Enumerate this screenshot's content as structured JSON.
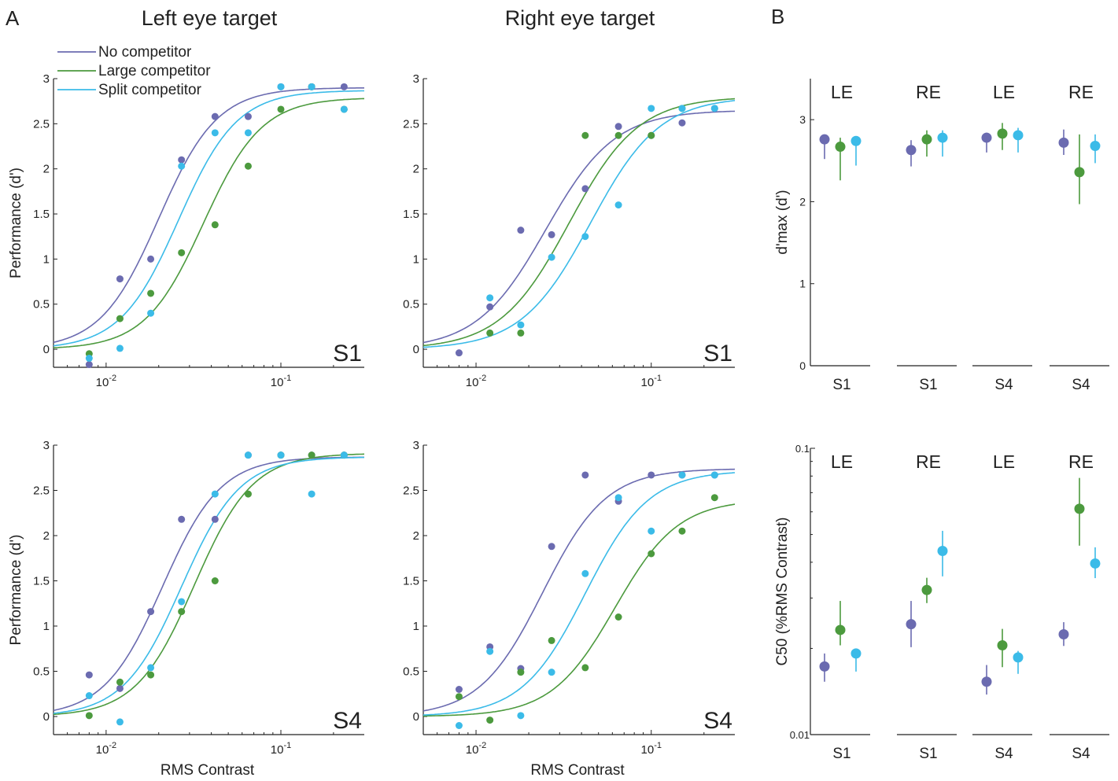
{
  "colors": {
    "no": "#6b6bb0",
    "large": "#4c9a3e",
    "split": "#3bbbe8"
  },
  "panel_labels": {
    "a": "A",
    "b": "B"
  },
  "column_titles": {
    "left": "Left eye target",
    "right": "Right eye target"
  },
  "legend": [
    "No competitor",
    "Large competitor",
    "Split competitor"
  ],
  "chart_data": [
    {
      "type": "line",
      "panel": "A",
      "subject": "S1",
      "title": "Left eye target",
      "xlabel": "",
      "ylabel": "Performance (d')",
      "xscale": "log",
      "xlim": [
        0.005,
        0.3
      ],
      "ylim": [
        -0.2,
        3
      ],
      "yticks": [
        "0",
        "0.5",
        "1",
        "1.5",
        "2",
        "2.5",
        "3"
      ],
      "xticks": [
        "10^-2",
        "10^-1"
      ],
      "x": [
        0.008,
        0.012,
        0.018,
        0.027,
        0.042,
        0.065,
        0.1,
        0.15,
        0.23
      ],
      "series": [
        {
          "name": "No competitor",
          "color": "#6b6bb0",
          "values": [
            -0.17,
            0.78,
            1.0,
            2.1,
            2.58,
            2.58,
            2.91,
            2.91,
            2.91
          ],
          "fit": {
            "max": 2.9,
            "c50": 0.02,
            "slope": 2.6
          }
        },
        {
          "name": "Large competitor",
          "color": "#4c9a3e",
          "values": [
            -0.05,
            0.34,
            0.62,
            1.07,
            1.38,
            2.03,
            2.66,
            2.91,
            2.66
          ],
          "fit": {
            "max": 2.79,
            "c50": 0.036,
            "slope": 2.6
          }
        },
        {
          "name": "Split competitor",
          "color": "#3bbbe8",
          "values": [
            -0.1,
            0.01,
            0.4,
            2.03,
            2.4,
            2.4,
            2.91,
            2.91,
            2.66
          ],
          "fit": {
            "max": 2.87,
            "c50": 0.026,
            "slope": 2.6
          }
        }
      ]
    },
    {
      "type": "line",
      "panel": "A",
      "subject": "S1",
      "title": "Right eye target",
      "xlabel": "",
      "ylabel": "",
      "xscale": "log",
      "xlim": [
        0.005,
        0.3
      ],
      "ylim": [
        -0.2,
        3
      ],
      "yticks": [
        "0",
        "0.5",
        "1",
        "1.5",
        "2",
        "2.5",
        "3"
      ],
      "xticks": [
        "10^-2",
        "10^-1"
      ],
      "x": [
        0.008,
        0.012,
        0.018,
        0.027,
        0.042,
        0.065,
        0.1,
        0.15,
        0.23
      ],
      "series": [
        {
          "name": "No competitor",
          "color": "#6b6bb0",
          "values": [
            -0.04,
            0.47,
            1.32,
            1.27,
            1.78,
            2.47,
            2.37,
            2.51,
            2.67
          ],
          "fit": {
            "max": 2.65,
            "c50": 0.025,
            "slope": 2.2
          }
        },
        {
          "name": "Large competitor",
          "color": "#4c9a3e",
          "values": [
            null,
            0.18,
            0.18,
            null,
            2.37,
            2.37,
            2.37,
            2.67,
            null
          ],
          "fit": {
            "max": 2.8,
            "c50": 0.034,
            "slope": 2.2
          }
        },
        {
          "name": "Split competitor",
          "color": "#3bbbe8",
          "values": [
            null,
            0.57,
            0.27,
            1.02,
            1.25,
            1.6,
            2.67,
            2.67,
            2.67
          ],
          "fit": {
            "max": 2.8,
            "c50": 0.045,
            "slope": 2.2
          }
        }
      ]
    },
    {
      "type": "line",
      "panel": "A",
      "subject": "S4",
      "title": "",
      "xlabel": "RMS Contrast",
      "ylabel": "Performance (d')",
      "xscale": "log",
      "xlim": [
        0.005,
        0.3
      ],
      "ylim": [
        -0.2,
        3
      ],
      "yticks": [
        "0",
        "0.5",
        "1",
        "1.5",
        "2",
        "2.5",
        "3"
      ],
      "xticks": [
        "10^-2",
        "10^-1"
      ],
      "x": [
        0.008,
        0.012,
        0.018,
        0.027,
        0.042,
        0.065,
        0.1,
        0.15,
        0.23
      ],
      "series": [
        {
          "name": "No competitor",
          "color": "#6b6bb0",
          "values": [
            0.46,
            0.31,
            1.16,
            2.18,
            2.18,
            2.89,
            2.89,
            2.89,
            2.89
          ],
          "fit": {
            "max": 2.87,
            "c50": 0.021,
            "slope": 2.6
          }
        },
        {
          "name": "Large competitor",
          "color": "#4c9a3e",
          "values": [
            0.01,
            0.38,
            0.46,
            1.16,
            1.5,
            2.46,
            2.89,
            2.89,
            2.89
          ],
          "fit": {
            "max": 2.91,
            "c50": 0.032,
            "slope": 2.6
          }
        },
        {
          "name": "Split competitor",
          "color": "#3bbbe8",
          "values": [
            0.23,
            -0.06,
            0.54,
            1.27,
            2.46,
            2.89,
            2.89,
            2.46,
            2.89
          ],
          "fit": {
            "max": 2.87,
            "c50": 0.027,
            "slope": 2.6
          }
        }
      ]
    },
    {
      "type": "line",
      "panel": "A",
      "subject": "S4",
      "title": "",
      "xlabel": "RMS Contrast",
      "ylabel": "",
      "xscale": "log",
      "xlim": [
        0.005,
        0.3
      ],
      "ylim": [
        -0.2,
        3
      ],
      "yticks": [
        "0",
        "0.5",
        "1",
        "1.5",
        "2",
        "2.5",
        "3"
      ],
      "xticks": [
        "10^-2",
        "10^-1"
      ],
      "x": [
        0.008,
        0.012,
        0.018,
        0.027,
        0.042,
        0.065,
        0.1,
        0.15,
        0.23
      ],
      "series": [
        {
          "name": "No competitor",
          "color": "#6b6bb0",
          "values": [
            0.3,
            0.77,
            0.53,
            1.88,
            2.67,
            2.38,
            2.67,
            2.67,
            2.67
          ],
          "fit": {
            "max": 2.74,
            "c50": 0.024,
            "slope": 2.4
          }
        },
        {
          "name": "Large competitor",
          "color": "#4c9a3e",
          "values": [
            0.22,
            -0.04,
            0.49,
            0.84,
            0.54,
            1.1,
            1.8,
            2.05,
            2.42
          ],
          "fit": {
            "max": 2.4,
            "c50": 0.062,
            "slope": 2.4
          }
        },
        {
          "name": "Split competitor",
          "color": "#3bbbe8",
          "values": [
            -0.1,
            0.72,
            0.01,
            0.49,
            1.58,
            2.42,
            2.05,
            2.67,
            2.67
          ],
          "fit": {
            "max": 2.72,
            "c50": 0.042,
            "slope": 2.4
          }
        }
      ]
    },
    {
      "type": "scatter",
      "panel": "B",
      "ylabel": "d'max (d')",
      "ylim": [
        0,
        3.5
      ],
      "yticks": [
        "0",
        "1",
        "2",
        "3"
      ],
      "group_labels": [
        "LE",
        "RE",
        "LE",
        "RE"
      ],
      "groups": [
        "S1",
        "S1",
        "S4",
        "S4"
      ],
      "series": [
        {
          "name": "No competitor",
          "color": "#6b6bb0",
          "values": [
            2.76,
            2.63,
            2.78,
            2.72
          ],
          "err_low": [
            2.52,
            2.43,
            2.6,
            2.57
          ],
          "err_high": [
            2.79,
            2.75,
            2.84,
            2.88
          ]
        },
        {
          "name": "Large competitor",
          "color": "#4c9a3e",
          "values": [
            2.67,
            2.76,
            2.83,
            2.36
          ],
          "err_low": [
            2.26,
            2.55,
            2.63,
            1.97
          ],
          "err_high": [
            2.78,
            2.87,
            2.96,
            2.82
          ]
        },
        {
          "name": "Split competitor",
          "color": "#3bbbe8",
          "values": [
            2.74,
            2.78,
            2.81,
            2.68
          ],
          "err_low": [
            2.44,
            2.55,
            2.6,
            2.47
          ],
          "err_high": [
            2.79,
            2.87,
            2.9,
            2.82
          ]
        }
      ]
    },
    {
      "type": "scatter",
      "panel": "B",
      "ylabel": "C50 (%RMS Contrast)",
      "yscale": "log",
      "ylim": [
        0.01,
        0.1
      ],
      "yticks": [
        "0.01",
        "0.1"
      ],
      "group_labels": [
        "LE",
        "RE",
        "LE",
        "RE"
      ],
      "groups": [
        "S1",
        "S1",
        "S4",
        "S4"
      ],
      "series": [
        {
          "name": "No competitor",
          "color": "#6b6bb0",
          "values": [
            0.0173,
            0.0243,
            0.0153,
            0.0224
          ],
          "err_low": [
            0.0153,
            0.0202,
            0.0138,
            0.0204
          ],
          "err_high": [
            0.0192,
            0.0293,
            0.0175,
            0.0247
          ]
        },
        {
          "name": "Large competitor",
          "color": "#4c9a3e",
          "values": [
            0.0232,
            0.032,
            0.0205,
            0.0615
          ],
          "err_low": [
            0.0205,
            0.0288,
            0.0172,
            0.0457
          ],
          "err_high": [
            0.0293,
            0.0353,
            0.0234,
            0.0788
          ]
        },
        {
          "name": "Split competitor",
          "color": "#3bbbe8",
          "values": [
            0.0192,
            0.0438,
            0.0186,
            0.0396
          ],
          "err_low": [
            0.0166,
            0.0357,
            0.0163,
            0.0352
          ],
          "err_high": [
            0.0196,
            0.0515,
            0.0196,
            0.0451
          ]
        }
      ]
    }
  ]
}
